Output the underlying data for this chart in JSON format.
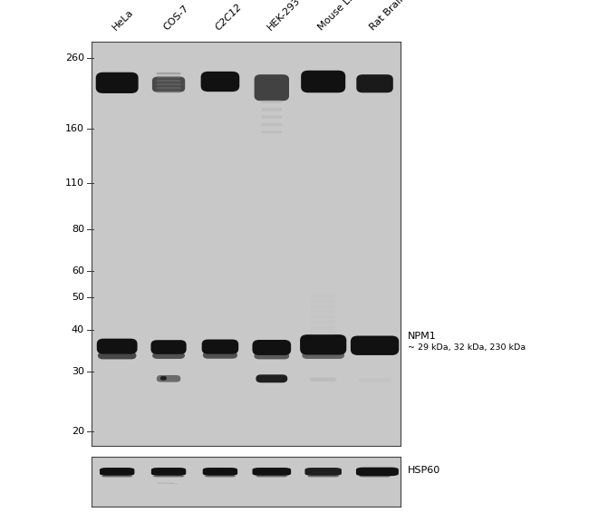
{
  "white_bg": "#ffffff",
  "panel_bg": "#c8c8c8",
  "ctrl_bg": "#c8c8c8",
  "border_color": "#444444",
  "dark": "#111111",
  "med_dark": "#333333",
  "med": "#555555",
  "light": "#999999",
  "very_light": "#bbbbbb",
  "lane_labels": [
    "HeLa",
    "COS-7",
    "C2C12",
    "HEK-293",
    "Mouse Liver",
    "Rat Brain"
  ],
  "lane_italic": [
    false,
    false,
    true,
    false,
    false,
    false
  ],
  "mw_markers": [
    260,
    160,
    110,
    80,
    60,
    50,
    40,
    30,
    20
  ],
  "npm1_label": "NPM1",
  "npm1_sublabel": "~ 29 kDa, 32 kDa, 230 kDa",
  "hsp60_label": "HSP60",
  "marker_fontsize": 8,
  "label_fontsize": 8
}
